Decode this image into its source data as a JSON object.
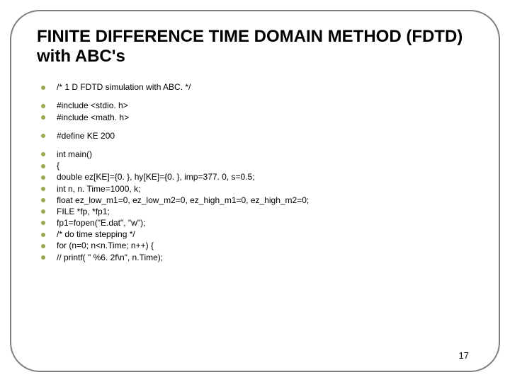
{
  "title": "FINITE DIFFERENCE TIME DOMAIN METHOD (FDTD) with ABC's",
  "title_fontsize": 24,
  "title_color": "#000000",
  "bullet_color": "#9aa84f",
  "body_fontsize": 12,
  "body_color": "#000000",
  "background_color": "#ffffff",
  "frame_color": "#808080",
  "frame_radius": 42,
  "page_number": "17",
  "page_number_fontsize": 13,
  "groups": [
    [
      "/*  1 D FDTD simulation with ABC. */"
    ],
    [
      "#include <stdio. h>",
      "#include <math. h>"
    ],
    [
      "#define KE 200"
    ],
    [
      "int main()",
      "{",
      "double ez[KE]={0. }, hy[KE]={0. }, imp=377. 0, s=0.5;",
      "int n, n. Time=1000, k;",
      "float ez_low_m1=0, ez_low_m2=0, ez_high_m1=0, ez_high_m2=0;",
      " FILE *fp, *fp1;",
      "  fp1=fopen(\"E.dat\", \"w\");",
      "/* do time stepping */",
      "for (n=0; n<n.Time; n++) {",
      "               // printf( \" %6. 2f\\n\", n.Time);"
    ]
  ]
}
